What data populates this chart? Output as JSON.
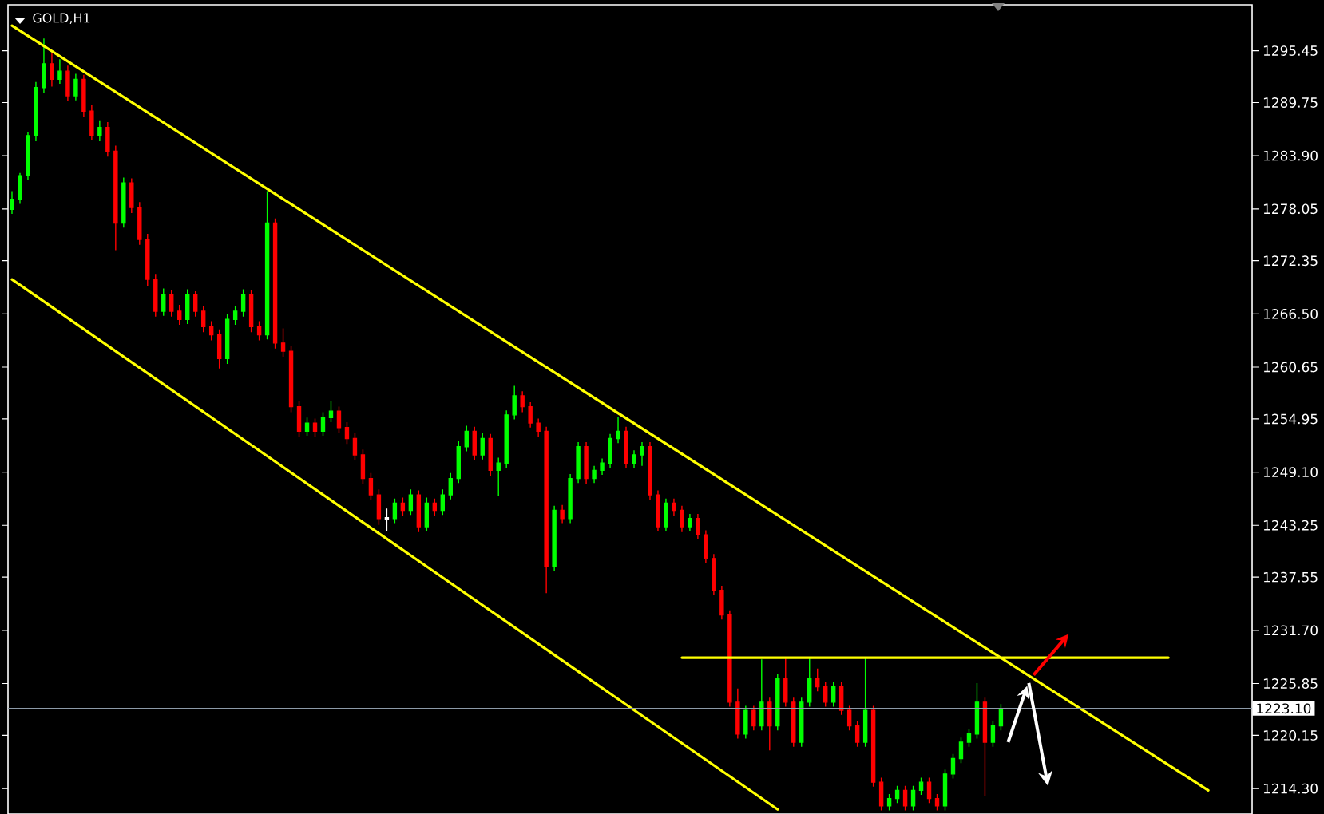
{
  "chart_data": {
    "type": "candlestick",
    "title": "GOLD,H1",
    "categories": [
      null,
      null,
      null,
      null,
      null,
      null,
      null,
      null,
      null,
      null,
      null,
      null,
      null,
      null,
      null,
      null,
      null,
      null,
      null,
      null,
      null,
      null,
      null,
      null,
      null,
      null,
      null,
      null,
      null,
      null,
      null,
      null,
      null,
      null,
      null,
      null,
      null,
      null,
      null,
      null,
      null,
      null,
      null,
      null,
      null,
      null,
      null,
      null,
      null,
      null,
      null,
      null,
      null,
      null,
      null,
      null,
      null,
      null,
      null,
      null,
      null,
      null,
      null,
      null,
      null,
      null,
      null,
      null,
      null,
      null,
      null,
      null,
      null,
      null,
      null,
      null,
      null,
      null,
      null,
      null,
      null,
      null,
      null,
      null,
      null,
      null,
      null,
      null,
      null,
      null,
      null,
      null,
      null,
      null,
      null,
      null,
      null,
      null,
      null,
      null,
      null,
      null,
      null,
      null,
      null,
      null,
      null,
      null,
      null,
      null,
      null,
      null,
      null,
      null,
      null,
      null,
      null,
      null,
      null,
      null,
      null,
      null,
      null,
      null,
      null,
      null,
      null,
      null,
      null,
      null,
      null,
      null,
      null,
      null,
      null,
      null,
      null,
      null,
      null,
      null,
      null,
      null,
      null,
      null,
      null,
      null,
      null,
      null,
      null,
      null,
      null,
      null,
      null,
      null,
      null,
      null
    ],
    "ylim": [
      1211.5,
      1300.5
    ],
    "yticks": [
      1295.45,
      1289.75,
      {
        "value": 1283.9,
        "label": "1283.90"
      },
      1278.05,
      1272.35,
      {
        "value": 1266.5,
        "label": "1266.50"
      },
      1260.65,
      1254.95,
      {
        "value": 1249.1,
        "label": "1249.10"
      },
      1243.25,
      1237.55,
      {
        "value": 1231.7,
        "label": "1231.70"
      },
      1225.85,
      1220.15,
      {
        "value": 1214.3,
        "label": "1214.30"
      }
    ],
    "colors": [
      "#00ff00",
      "#00ff00",
      "#00ff00",
      "#00ff00",
      "#00ff00",
      "#ff0000",
      "#00ff00",
      "#ff0000",
      "#00ff00",
      "#ff0000",
      "#ff0000",
      "#00ff00",
      "#ff0000",
      "#ff0000",
      "#00ff00",
      "#ff0000",
      "#ff0000",
      "#ff0000",
      "#ff0000",
      "#00ff00",
      "#ff0000",
      "#ff0000",
      "#00ff00",
      "#ff0000",
      "#ff0000",
      "#ff0000",
      "#ff0000",
      "#00ff00",
      "#00ff00",
      "#00ff00",
      "#ff0000",
      "#ff0000",
      "#00ff00",
      "#ff0000",
      "#ff0000",
      "#ff0000",
      "#ff0000",
      "#00ff00",
      "#ff0000",
      "#00ff00",
      "#00ff00",
      "#ff0000",
      "#ff0000",
      "#ff0000",
      "#ff0000",
      "#ff0000",
      "#ff0000",
      "#ffffff",
      "#00ff00",
      "#ff0000",
      "#00ff00",
      "#ff0000",
      "#00ff00",
      "#ff0000",
      "#00ff00",
      "#00ff00",
      "#00ff00",
      "#00ff00",
      "#ff0000",
      "#00ff00",
      "#ff0000",
      "#00ff00",
      "#00ff00",
      "#00ff00",
      "#ff0000",
      "#ff0000",
      "#ff0000",
      "#ff0000",
      "#00ff00",
      "#ff0000",
      "#00ff00",
      "#00ff00",
      "#ff0000",
      "#00ff00",
      "#00ff00",
      "#00ff00",
      "#00ff00",
      "#ff0000",
      "#00ff00",
      "#00ff00",
      "#ff0000",
      "#ff0000",
      "#00ff00",
      "#ff0000",
      "#ff0000",
      "#00ff00",
      "#ff0000",
      "#ff0000",
      "#ff0000",
      "#ff0000",
      "#ff0000",
      "#ff0000",
      "#00ff00",
      "#ff0000",
      "#00ff00",
      "#ff0000",
      "#00ff00",
      "#ff0000",
      "#ff0000",
      "#00ff00",
      "#00ff00",
      "#ff0000",
      "#ff0000",
      "#00ff00",
      "#ff0000",
      "#ff0000",
      "#ff0000",
      "#00ff00",
      "#ff0000",
      "#ff0000",
      "#00ff00",
      "#00ff00",
      "#ff0000",
      "#00ff00",
      "#00ff00",
      "#ff0000",
      "#ff0000",
      "#00ff00",
      "#00ff00",
      "#00ff00",
      "#00ff00",
      "#00ff00",
      "#ff0000",
      "#00ff00",
      "#00ff00",
      null,
      null,
      null,
      null,
      null,
      null,
      null,
      null,
      null,
      null,
      null,
      null,
      null,
      null,
      null,
      null,
      null,
      null,
      null,
      null,
      null,
      null,
      null,
      null,
      null,
      null,
      null,
      null,
      null,
      null,
      null
    ],
    "ohlc": [
      [
        1278.0,
        1280.0,
        1277.5,
        1279.1
      ],
      [
        1279.1,
        1282.0,
        1278.6,
        1281.7
      ],
      [
        1281.7,
        1286.5,
        1281.2,
        1286.1
      ],
      [
        1286.1,
        1292.0,
        1285.5,
        1291.4
      ],
      [
        1291.4,
        1296.8,
        1290.8,
        1294.0
      ],
      [
        1294.0,
        1295.2,
        1291.5,
        1292.3
      ],
      [
        1292.3,
        1294.5,
        1291.8,
        1293.2
      ],
      [
        1293.2,
        1293.8,
        1289.9,
        1290.5
      ],
      [
        1290.5,
        1292.9,
        1290.0,
        1292.3
      ],
      [
        1292.3,
        1292.8,
        1288.2,
        1288.8
      ],
      [
        1288.8,
        1289.5,
        1285.6,
        1286.1
      ],
      [
        1286.1,
        1287.8,
        1285.5,
        1287.0
      ],
      [
        1287.0,
        1287.6,
        1283.8,
        1284.4
      ],
      [
        1284.4,
        1285.0,
        1273.5,
        1276.5
      ],
      [
        1276.5,
        1281.5,
        1276.0,
        1280.9
      ],
      [
        1280.9,
        1281.4,
        1277.6,
        1278.2
      ],
      [
        1278.2,
        1278.8,
        1274.1,
        1274.7
      ],
      [
        1274.7,
        1275.3,
        1269.6,
        1270.3
      ],
      [
        1270.3,
        1270.9,
        1266.2,
        1266.8
      ],
      [
        1266.8,
        1269.3,
        1266.3,
        1268.6
      ],
      [
        1268.6,
        1269.1,
        1266.2,
        1266.8
      ],
      [
        1266.8,
        1267.5,
        1265.3,
        1265.9
      ],
      [
        1265.9,
        1269.2,
        1265.4,
        1268.6
      ],
      [
        1268.6,
        1269.0,
        1266.2,
        1266.8
      ],
      [
        1266.8,
        1267.4,
        1264.5,
        1265.1
      ],
      [
        1265.1,
        1265.7,
        1263.6,
        1264.2
      ],
      [
        1264.2,
        1264.8,
        1260.5,
        1261.6
      ],
      [
        1261.6,
        1266.5,
        1261.0,
        1265.9
      ],
      [
        1265.9,
        1267.4,
        1265.3,
        1266.8
      ],
      [
        1266.8,
        1269.2,
        1266.2,
        1268.6
      ],
      [
        1268.6,
        1269.1,
        1264.5,
        1265.1
      ],
      [
        1265.1,
        1265.7,
        1263.6,
        1264.2
      ],
      [
        1264.2,
        1280.0,
        1263.7,
        1276.5
      ],
      [
        1276.5,
        1277.0,
        1262.7,
        1263.3
      ],
      [
        1263.3,
        1264.9,
        1261.8,
        1262.4
      ],
      [
        1262.4,
        1263.0,
        1255.7,
        1256.3
      ],
      [
        1256.3,
        1256.9,
        1253.0,
        1253.6
      ],
      [
        1253.6,
        1255.1,
        1253.1,
        1254.5
      ],
      [
        1254.5,
        1255.0,
        1253.0,
        1253.6
      ],
      [
        1253.6,
        1255.7,
        1253.1,
        1255.1
      ],
      [
        1255.1,
        1256.9,
        1254.6,
        1255.8
      ],
      [
        1255.8,
        1256.3,
        1253.4,
        1254.0
      ],
      [
        1254.0,
        1254.6,
        1252.2,
        1252.8
      ],
      [
        1252.8,
        1253.4,
        1250.4,
        1251.0
      ],
      [
        1251.0,
        1251.6,
        1247.8,
        1248.4
      ],
      [
        1248.4,
        1249.0,
        1246.0,
        1246.6
      ],
      [
        1246.6,
        1247.2,
        1243.3,
        1244.0
      ],
      [
        1244.0,
        1245.1,
        1242.6,
        1244.0
      ],
      [
        1244.0,
        1246.2,
        1243.5,
        1245.7
      ],
      [
        1245.7,
        1246.3,
        1244.3,
        1244.9
      ],
      [
        1244.9,
        1247.2,
        1244.4,
        1246.6
      ],
      [
        1246.6,
        1247.1,
        1242.5,
        1243.1
      ],
      [
        1243.1,
        1246.3,
        1242.6,
        1245.7
      ],
      [
        1245.7,
        1246.2,
        1244.3,
        1244.9
      ],
      [
        1244.9,
        1247.2,
        1244.4,
        1246.6
      ],
      [
        1246.6,
        1249.0,
        1246.1,
        1248.4
      ],
      [
        1248.4,
        1252.5,
        1247.9,
        1251.9
      ],
      [
        1251.9,
        1254.2,
        1251.4,
        1253.6
      ],
      [
        1253.6,
        1254.1,
        1250.4,
        1251.0
      ],
      [
        1251.0,
        1253.4,
        1250.5,
        1252.8
      ],
      [
        1252.8,
        1253.3,
        1248.7,
        1249.3
      ],
      [
        1249.3,
        1250.7,
        1246.5,
        1250.1
      ],
      [
        1250.1,
        1255.9,
        1249.6,
        1255.4
      ],
      [
        1255.4,
        1258.6,
        1254.9,
        1257.5
      ],
      [
        1257.5,
        1258.0,
        1255.7,
        1256.3
      ],
      [
        1256.3,
        1256.8,
        1254.0,
        1254.5
      ],
      [
        1254.5,
        1255.0,
        1253.0,
        1253.6
      ],
      [
        1253.6,
        1254.1,
        1235.8,
        1238.7
      ],
      [
        1238.7,
        1245.4,
        1238.2,
        1244.9
      ],
      [
        1244.9,
        1245.5,
        1243.5,
        1244.0
      ],
      [
        1244.0,
        1248.9,
        1243.5,
        1248.4
      ],
      [
        1248.4,
        1252.4,
        1247.9,
        1251.9
      ],
      [
        1251.9,
        1252.4,
        1247.8,
        1248.4
      ],
      [
        1248.4,
        1249.8,
        1247.9,
        1249.3
      ],
      [
        1249.3,
        1250.6,
        1248.8,
        1250.1
      ],
      [
        1250.1,
        1253.3,
        1249.6,
        1252.8
      ],
      [
        1252.8,
        1255.2,
        1252.3,
        1253.6
      ],
      [
        1253.6,
        1254.1,
        1249.6,
        1250.1
      ],
      [
        1250.1,
        1251.5,
        1249.6,
        1251.0
      ],
      [
        1251.0,
        1252.4,
        1249.8,
        1251.9
      ],
      [
        1251.9,
        1252.4,
        1246.0,
        1246.6
      ],
      [
        1246.6,
        1247.1,
        1242.6,
        1243.1
      ],
      [
        1243.1,
        1246.2,
        1242.6,
        1245.7
      ],
      [
        1245.7,
        1246.2,
        1244.3,
        1244.9
      ],
      [
        1244.9,
        1245.4,
        1242.5,
        1243.1
      ],
      [
        1243.1,
        1244.5,
        1242.6,
        1244.0
      ],
      [
        1244.0,
        1244.5,
        1241.7,
        1242.2
      ],
      [
        1242.2,
        1242.7,
        1239.1,
        1239.6
      ],
      [
        1239.6,
        1240.1,
        1235.6,
        1236.1
      ],
      [
        1236.1,
        1236.6,
        1232.9,
        1233.4
      ],
      [
        1233.4,
        1233.9,
        1223.3,
        1223.8
      ],
      [
        1223.8,
        1225.3,
        1219.8,
        1220.3
      ],
      [
        1220.3,
        1223.4,
        1219.8,
        1222.9
      ],
      [
        1222.9,
        1223.4,
        1220.7,
        1221.2
      ],
      [
        1221.2,
        1228.5,
        1220.7,
        1223.8
      ],
      [
        1223.8,
        1224.3,
        1218.5,
        1221.2
      ],
      [
        1221.2,
        1226.9,
        1220.7,
        1226.4
      ],
      [
        1226.4,
        1228.6,
        1223.3,
        1223.8
      ],
      [
        1223.8,
        1224.3,
        1218.9,
        1219.4
      ],
      [
        1219.4,
        1224.3,
        1218.9,
        1223.8
      ],
      [
        1223.8,
        1228.6,
        1223.3,
        1226.4
      ],
      [
        1226.4,
        1227.5,
        1225.0,
        1225.5
      ],
      [
        1225.5,
        1226.0,
        1223.3,
        1223.8
      ],
      [
        1223.8,
        1226.0,
        1223.3,
        1225.5
      ],
      [
        1225.5,
        1226.0,
        1222.4,
        1222.9
      ],
      [
        1222.9,
        1223.4,
        1220.7,
        1221.2
      ],
      [
        1221.2,
        1221.7,
        1218.9,
        1219.4
      ],
      [
        1219.4,
        1228.6,
        1218.9,
        1222.9
      ],
      [
        1222.9,
        1223.4,
        1214.5,
        1215.0
      ],
      [
        1215.0,
        1215.5,
        1211.9,
        1212.4
      ],
      [
        1212.4,
        1213.7,
        1211.9,
        1213.2
      ],
      [
        1213.2,
        1214.6,
        1212.7,
        1214.1
      ],
      [
        1214.1,
        1214.6,
        1211.9,
        1212.4
      ],
      [
        1212.4,
        1214.6,
        1211.9,
        1214.1
      ],
      [
        1214.1,
        1215.5,
        1213.6,
        1215.0
      ],
      [
        1215.0,
        1215.5,
        1212.7,
        1213.2
      ],
      [
        1213.2,
        1213.7,
        1211.9,
        1212.4
      ],
      [
        1212.4,
        1216.4,
        1211.9,
        1215.9
      ],
      [
        1215.9,
        1218.1,
        1215.4,
        1217.6
      ],
      [
        1217.6,
        1219.9,
        1217.1,
        1219.4
      ],
      [
        1219.4,
        1220.8,
        1218.9,
        1220.3
      ],
      [
        1220.3,
        1225.9,
        1219.8,
        1223.8
      ],
      [
        1223.8,
        1224.3,
        1213.5,
        1219.4
      ],
      [
        1219.4,
        1221.7,
        1218.9,
        1221.2
      ],
      [
        1221.2,
        1223.6,
        1220.7,
        1223.1
      ],
      null,
      null,
      null,
      null,
      null,
      null,
      null,
      null,
      null,
      null,
      null,
      null,
      null,
      null,
      null,
      null,
      null,
      null,
      null,
      null,
      null,
      null,
      null,
      null,
      null,
      null,
      null,
      null,
      null,
      null,
      null
    ],
    "series": [
      {
        "type": "line",
        "color": "#ffff00",
        "values": [
          1298.2,
          null,
          null,
          null,
          null,
          null,
          null,
          null,
          null,
          null,
          null,
          null,
          null,
          null,
          null,
          null,
          null,
          null,
          null,
          null,
          null,
          null,
          null,
          null,
          null,
          null,
          null,
          null,
          null,
          null,
          null,
          null,
          null,
          null,
          null,
          null,
          null,
          null,
          null,
          null,
          null,
          null,
          null,
          null,
          null,
          null,
          null,
          null,
          null,
          null,
          null,
          null,
          null,
          null,
          null,
          null,
          null,
          null,
          null,
          null,
          null,
          null,
          null,
          null,
          null,
          null,
          null,
          null,
          null,
          null,
          null,
          null,
          null,
          null,
          null,
          null,
          null,
          null,
          null,
          null,
          null,
          null,
          null,
          null,
          null,
          null,
          null,
          null,
          null,
          null,
          null,
          null,
          null,
          null,
          null,
          null,
          null,
          null,
          null,
          null,
          null,
          null,
          null,
          null,
          null,
          null,
          null,
          null,
          null,
          null,
          null,
          null,
          null,
          null,
          null,
          null,
          null,
          null,
          null,
          null,
          null,
          null,
          null,
          null,
          null,
          null,
          null,
          null,
          null,
          null,
          null,
          null,
          null,
          null,
          null,
          null,
          null,
          null,
          null,
          null,
          null,
          null,
          null,
          null,
          null,
          null,
          null,
          null,
          null,
          null,
          1214.1,
          null,
          null,
          null,
          null,
          null
        ]
      },
      {
        "type": "line",
        "color": "#ffff00",
        "values": [
          1270.3,
          null,
          null,
          null,
          null,
          null,
          null,
          null,
          null,
          null,
          null,
          null,
          null,
          null,
          null,
          null,
          null,
          null,
          null,
          null,
          null,
          null,
          null,
          null,
          null,
          null,
          null,
          null,
          null,
          null,
          null,
          null,
          null,
          null,
          null,
          null,
          null,
          null,
          null,
          null,
          null,
          null,
          null,
          null,
          null,
          null,
          null,
          null,
          null,
          null,
          null,
          null,
          null,
          null,
          null,
          null,
          null,
          null,
          null,
          null,
          null,
          null,
          null,
          null,
          null,
          null,
          null,
          null,
          null,
          null,
          null,
          null,
          null,
          null,
          null,
          null,
          null,
          null,
          null,
          null,
          null,
          null,
          null,
          null,
          null,
          null,
          null,
          null,
          null,
          null,
          null,
          null,
          null,
          null,
          null,
          null,
          1212.0,
          null,
          null,
          null,
          null,
          null,
          null,
          null,
          null,
          null,
          null,
          null,
          null,
          null,
          null,
          null,
          null,
          null,
          null,
          null,
          null,
          null,
          null,
          null,
          null,
          null,
          null,
          null,
          null,
          null,
          null,
          null,
          null,
          null,
          null,
          null,
          null,
          null,
          null,
          null,
          null,
          null,
          null,
          null,
          null,
          null,
          null,
          null,
          null,
          null,
          null,
          null,
          null,
          null,
          null,
          null,
          null,
          null,
          null,
          null
        ]
      },
      {
        "type": "line",
        "color": "#ffff00",
        "values": [
          null,
          null,
          null,
          null,
          null,
          null,
          null,
          null,
          null,
          null,
          null,
          null,
          null,
          null,
          null,
          null,
          null,
          null,
          null,
          null,
          null,
          null,
          null,
          null,
          null,
          null,
          null,
          null,
          null,
          null,
          null,
          null,
          null,
          null,
          null,
          null,
          null,
          null,
          null,
          null,
          null,
          null,
          null,
          null,
          null,
          null,
          null,
          null,
          null,
          null,
          null,
          null,
          null,
          null,
          null,
          null,
          null,
          null,
          null,
          null,
          null,
          null,
          null,
          null,
          null,
          null,
          null,
          null,
          null,
          null,
          null,
          null,
          null,
          null,
          null,
          null,
          null,
          null,
          null,
          null,
          null,
          null,
          null,
          null,
          1228.7,
          null,
          null,
          null,
          null,
          null,
          null,
          null,
          null,
          null,
          null,
          null,
          null,
          null,
          null,
          null,
          null,
          null,
          null,
          null,
          null,
          null,
          null,
          null,
          null,
          null,
          null,
          null,
          null,
          null,
          null,
          null,
          null,
          null,
          null,
          null,
          null,
          null,
          null,
          null,
          null,
          null,
          null,
          null,
          null,
          null,
          null,
          null,
          null,
          null,
          null,
          null,
          null,
          null,
          null,
          null,
          null,
          null,
          null,
          null,
          null,
          1228.7,
          null,
          null,
          null,
          null,
          null,
          null,
          null,
          null,
          null,
          null
        ]
      }
    ],
    "ref_lines": [
      {
        "axis": "y",
        "value": 1223.1,
        "label": "1223.10",
        "color": "#8c9aa8"
      }
    ]
  }
}
